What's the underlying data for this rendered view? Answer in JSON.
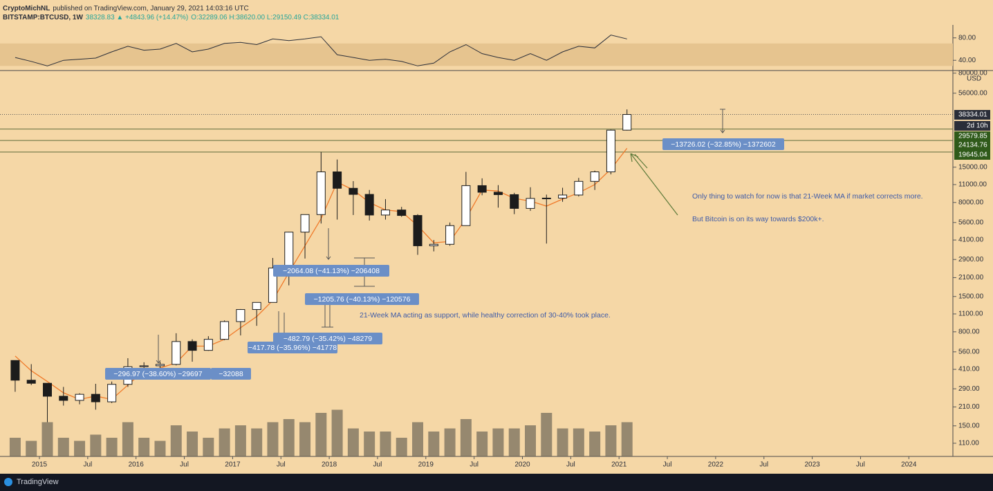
{
  "header": {
    "author": "CryptoMichNL",
    "published": "published on TradingView.com, January 29, 2021 14:03:16 UTC",
    "symbol": "BITSTAMP:BTCUSD, 1W",
    "quote": "38328.83 ▲ +4843.96 (+14.47%)",
    "ohlc": "O:32289.06 H:38620.00 L:29150.49 C:38334.01"
  },
  "chart_data": [
    {
      "type": "candlestick",
      "x": [
        "2014-09",
        "2014-11",
        "2015-01",
        "2015-03",
        "2015-05",
        "2015-07",
        "2015-09",
        "2015-11",
        "2016-01",
        "2016-03",
        "2016-05",
        "2016-07",
        "2016-09",
        "2016-11",
        "2017-01",
        "2017-03",
        "2017-05",
        "2017-07",
        "2017-09",
        "2017-11",
        "2018-01",
        "2018-03",
        "2018-05",
        "2018-07",
        "2018-09",
        "2018-11",
        "2019-01",
        "2019-03",
        "2019-05",
        "2019-07",
        "2019-09",
        "2019-11",
        "2020-01",
        "2020-03",
        "2020-05",
        "2020-07",
        "2020-09",
        "2020-11",
        "2021-01"
      ],
      "open": [
        480,
        338,
        320,
        254,
        236,
        263,
        230,
        314,
        430,
        437,
        448,
        673,
        575,
        700,
        960,
        1190,
        1350,
        2490,
        4720,
        6450,
        13800,
        10300,
        9240,
        6400,
        7000,
        6350,
        3700,
        3800,
        5300,
        10800,
        9600,
        9200,
        7200,
        8600,
        8650,
        9140,
        11650,
        13800,
        29000
      ],
      "high": [
        480,
        450,
        320,
        300,
        268,
        317,
        330,
        500,
        465,
        470,
        780,
        700,
        740,
        980,
        1200,
        1350,
        2980,
        4750,
        6470,
        19700,
        17200,
        11700,
        10000,
        8500,
        7400,
        6500,
        4100,
        5600,
        13800,
        12300,
        10900,
        9500,
        10500,
        9200,
        10400,
        12400,
        14100,
        29300,
        41950
      ],
      "low": [
        275,
        310,
        160,
        215,
        220,
        200,
        225,
        300,
        350,
        395,
        440,
        470,
        570,
        690,
        750,
        890,
        1350,
        1830,
        2950,
        5500,
        5900,
        6400,
        5800,
        5900,
        6200,
        3150,
        3350,
        3700,
        5300,
        9100,
        7300,
        6500,
        6900,
        3850,
        8100,
        8900,
        10000,
        13200,
        28800
      ],
      "close": [
        338,
        320,
        254,
        236,
        263,
        230,
        314,
        430,
        437,
        448,
        673,
        575,
        700,
        960,
        1190,
        1350,
        2490,
        4720,
        6450,
        13800,
        10300,
        9240,
        6400,
        7000,
        6350,
        3700,
        3800,
        5300,
        10800,
        9600,
        9200,
        7200,
        8600,
        8650,
        9140,
        11650,
        13800,
        29000,
        38334.01
      ],
      "volume": [
        30,
        25,
        55,
        30,
        25,
        35,
        30,
        55,
        30,
        25,
        50,
        40,
        30,
        45,
        50,
        45,
        55,
        60,
        55,
        70,
        75,
        45,
        40,
        40,
        30,
        55,
        40,
        45,
        60,
        40,
        45,
        45,
        50,
        70,
        45,
        45,
        40,
        50,
        55
      ],
      "ma21": [
        520,
        400,
        330,
        270,
        240,
        255,
        240,
        310,
        400,
        420,
        460,
        620,
        620,
        700,
        860,
        1050,
        1400,
        2300,
        3700,
        6000,
        11500,
        10000,
        8000,
        7000,
        6800,
        5300,
        3900,
        4000,
        6000,
        10000,
        9800,
        8600,
        8200,
        7500,
        8500,
        9500,
        11000,
        14500,
        21000
      ],
      "up_color": "#ffffff",
      "down_color": "#1c1c1c",
      "ma_color": "#f07a2a",
      "volume_color": "#6e6658",
      "level_color": "#5d6b3a",
      "log_scale": true,
      "grid": false,
      "unit": "USD",
      "ylim": [
        87,
        82800
      ],
      "yticks": [
        {
          "value": 80000,
          "label": "80000.00"
        },
        {
          "value": 56000,
          "label": "56000.00"
        },
        {
          "value": 15000,
          "label": "15000.00"
        },
        {
          "value": 11000,
          "label": "11000.00"
        },
        {
          "value": 8000,
          "label": "8000.00"
        },
        {
          "value": 5600,
          "label": "5600.00"
        },
        {
          "value": 4100,
          "label": "4100.00"
        },
        {
          "value": 2900,
          "label": "2900.00"
        },
        {
          "value": 2100,
          "label": "2100.00"
        },
        {
          "value": 1500,
          "label": "1500.00"
        },
        {
          "value": 1100,
          "label": "1100.00"
        },
        {
          "value": 800,
          "label": "800.00"
        },
        {
          "value": 560,
          "label": "560.00"
        },
        {
          "value": 410,
          "label": "410.00"
        },
        {
          "value": 290,
          "label": "290.00"
        },
        {
          "value": 210,
          "label": "210.00"
        },
        {
          "value": 150,
          "label": "150.00"
        },
        {
          "value": 110,
          "label": "110.00"
        }
      ],
      "xlim": [
        "2014-08",
        "2024-06"
      ],
      "xticks": [
        {
          "value": "2015-01",
          "label": "2015"
        },
        {
          "value": "2015-07",
          "label": "Jul"
        },
        {
          "value": "2016-01",
          "label": "2016"
        },
        {
          "value": "2016-07",
          "label": "Jul"
        },
        {
          "value": "2017-01",
          "label": "2017"
        },
        {
          "value": "2017-07",
          "label": "Jul"
        },
        {
          "value": "2018-01",
          "label": "2018"
        },
        {
          "value": "2018-07",
          "label": "Jul"
        },
        {
          "value": "2019-01",
          "label": "2019"
        },
        {
          "value": "2019-07",
          "label": "Jul"
        },
        {
          "value": "2020-01",
          "label": "2020"
        },
        {
          "value": "2020-07",
          "label": "Jul"
        },
        {
          "value": "2021-01",
          "label": "2021"
        },
        {
          "value": "2021-07",
          "label": "Jul"
        },
        {
          "value": "2022-01",
          "label": "2022"
        },
        {
          "value": "2022-07",
          "label": "Jul"
        },
        {
          "value": "2023-01",
          "label": "2023"
        },
        {
          "value": "2023-07",
          "label": "Jul"
        },
        {
          "value": "2024-01",
          "label": "2024"
        }
      ],
      "price_labels": [
        38334.01,
        29579.85,
        24134.76,
        19645.04
      ],
      "price_label_colors": [
        "#2a2e39",
        "#2f5a1a",
        "#2f5a1a",
        "#2f5a1a"
      ],
      "countdown": "2d 10h",
      "measurements": [
        "−32088",
        "−296.97 (−38.60%) −29697",
        "−417.78 (−35.96%) −41778",
        "−482.79 (−35.42%) −48279",
        "−1205.76 (−40.13%) −120576",
        "−2064.08 (−41.13%) −206408",
        "−13726.02 (−32.85%) −1372602"
      ],
      "measure_color": "#6b8fc7",
      "notes": [
        "21-Week MA acting as support, while healthy correction of 30-40% took place.",
        "Only thing to watch for now is that 21-Week MA if market corrects more.",
        "But Bitcoin is on its way towards $200k+."
      ]
    },
    {
      "type": "line",
      "values": [
        45,
        38,
        30,
        40,
        42,
        44,
        55,
        65,
        58,
        60,
        70,
        55,
        60,
        70,
        72,
        68,
        78,
        75,
        78,
        82,
        50,
        45,
        40,
        42,
        38,
        30,
        35,
        55,
        68,
        52,
        45,
        40,
        52,
        40,
        55,
        65,
        62,
        85,
        78
      ],
      "color": "#2a2e39",
      "band": [
        30,
        70
      ],
      "band_color": "#e6c48f",
      "ylim": [
        23,
        100.6
      ],
      "yticks": [
        {
          "value": 80,
          "label": "80.00"
        },
        {
          "value": 40,
          "label": "40.00"
        }
      ]
    }
  ],
  "footer": {
    "brand": "TradingView"
  }
}
